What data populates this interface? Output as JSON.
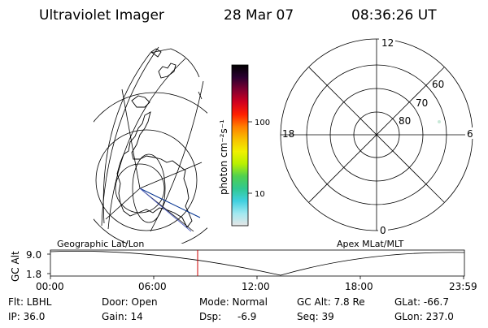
{
  "header": {
    "title": "Ultraviolet Imager",
    "date": "28 Mar 07",
    "time": "08:36:26 UT"
  },
  "colorbar": {
    "label": "photon cm⁻²s⁻¹",
    "tick_100": "100",
    "tick_10": "10",
    "gradient": [
      "#e6e6e6",
      "#a0e8f0",
      "#40d0e0",
      "#30c890",
      "#50d050",
      "#b8f000",
      "#f0f000",
      "#f8c000",
      "#ff8000",
      "#ff2000",
      "#d00020",
      "#800030",
      "#2a0030",
      "#000000"
    ]
  },
  "polar_plot": {
    "mlt_labels": [
      "12",
      "18",
      "6",
      "0"
    ],
    "lat_labels": [
      "60",
      "70",
      "80"
    ]
  },
  "timeline": {
    "left_label": "Geographic Lat/Lon",
    "right_label": "Apex MLat/MLT",
    "y_axis_label": "GC Alt",
    "y_ticks": [
      "9.0",
      "1.8"
    ],
    "x_ticks": [
      "00:00",
      "06:00",
      "12:00",
      "18:00",
      "23:59"
    ],
    "current_time_marker_color": "#cc0000"
  },
  "status": {
    "flt": "Flt: LBHL",
    "ip": "IP: 36.0",
    "door": "Door: Open",
    "gain": "Gain: 14",
    "mode": "Mode: Normal",
    "dsp": "Dsp:",
    "dsp_value": "-6.9",
    "gc_alt": "GC Alt: 7.8 Re",
    "seq": "Seq: 39",
    "glat": "GLat: -66.7",
    "glon": "GLon: 237.0"
  }
}
